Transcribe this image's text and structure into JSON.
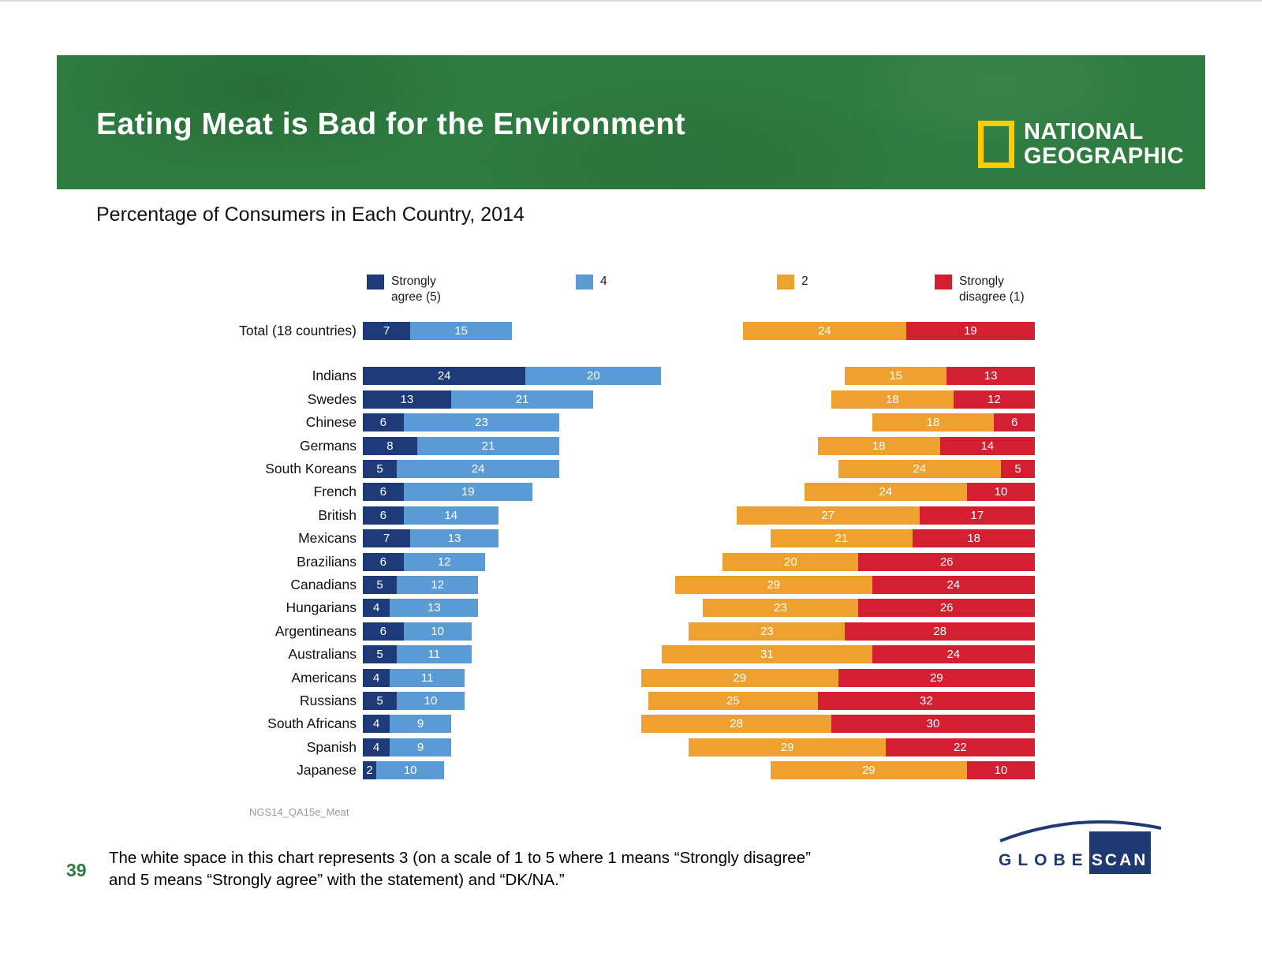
{
  "header": {
    "title": "Eating Meat is Bad for the Environment",
    "natgeo_logo": {
      "line1": "NATIONAL",
      "line2": "GEOGRAPHIC"
    }
  },
  "subtitle": "Percentage of Consumers in Each Country, 2014",
  "chart_data": {
    "type": "diverging-stacked-bar",
    "unit": "percent",
    "title": "Eating Meat is Bad for the Environment",
    "subtitle": "Percentage of Consumers in Each Country, 2014",
    "legend": [
      {
        "label": "Strongly agree (5)",
        "color": "#1e3a78"
      },
      {
        "label": "4",
        "color": "#5b9bd5"
      },
      {
        "label": "2",
        "color": "#efa12f"
      },
      {
        "label": "Strongly disagree (1)",
        "color": "#d41f33"
      }
    ],
    "categories": [
      "Total (18 countries)",
      "Indians",
      "Swedes",
      "Chinese",
      "Germans",
      "South Koreans",
      "French",
      "British",
      "Mexicans",
      "Brazilians",
      "Canadians",
      "Hungarians",
      "Argentineans",
      "Australians",
      "Americans",
      "Russians",
      "South Africans",
      "Spanish",
      "Japanese"
    ],
    "series": [
      {
        "name": "Strongly agree (5)",
        "values": [
          7,
          24,
          13,
          6,
          8,
          5,
          6,
          6,
          7,
          6,
          5,
          4,
          6,
          5,
          4,
          5,
          4,
          4,
          2
        ]
      },
      {
        "name": "4",
        "values": [
          15,
          20,
          21,
          23,
          21,
          24,
          19,
          14,
          13,
          12,
          12,
          13,
          10,
          11,
          11,
          10,
          9,
          9,
          10
        ]
      },
      {
        "name": "2",
        "values": [
          24,
          15,
          18,
          18,
          18,
          24,
          24,
          27,
          21,
          20,
          29,
          23,
          23,
          31,
          29,
          25,
          28,
          29,
          29
        ]
      },
      {
        "name": "Strongly disagree (1)",
        "values": [
          19,
          13,
          12,
          6,
          14,
          5,
          10,
          17,
          18,
          26,
          24,
          26,
          28,
          24,
          29,
          32,
          30,
          22,
          10
        ]
      }
    ],
    "source_label": "NGS14_QA15e_Meat"
  },
  "footer": {
    "note_line1": "The white space in this chart represents 3 (on a scale of 1 to 5 where 1 means “Strongly disagree”",
    "note_line2": "and 5 means “Strongly agree” with the statement) and “DK/NA.”",
    "page_number": "39",
    "globescan": {
      "globe": "GLOBE",
      "scan": "SCAN"
    }
  }
}
